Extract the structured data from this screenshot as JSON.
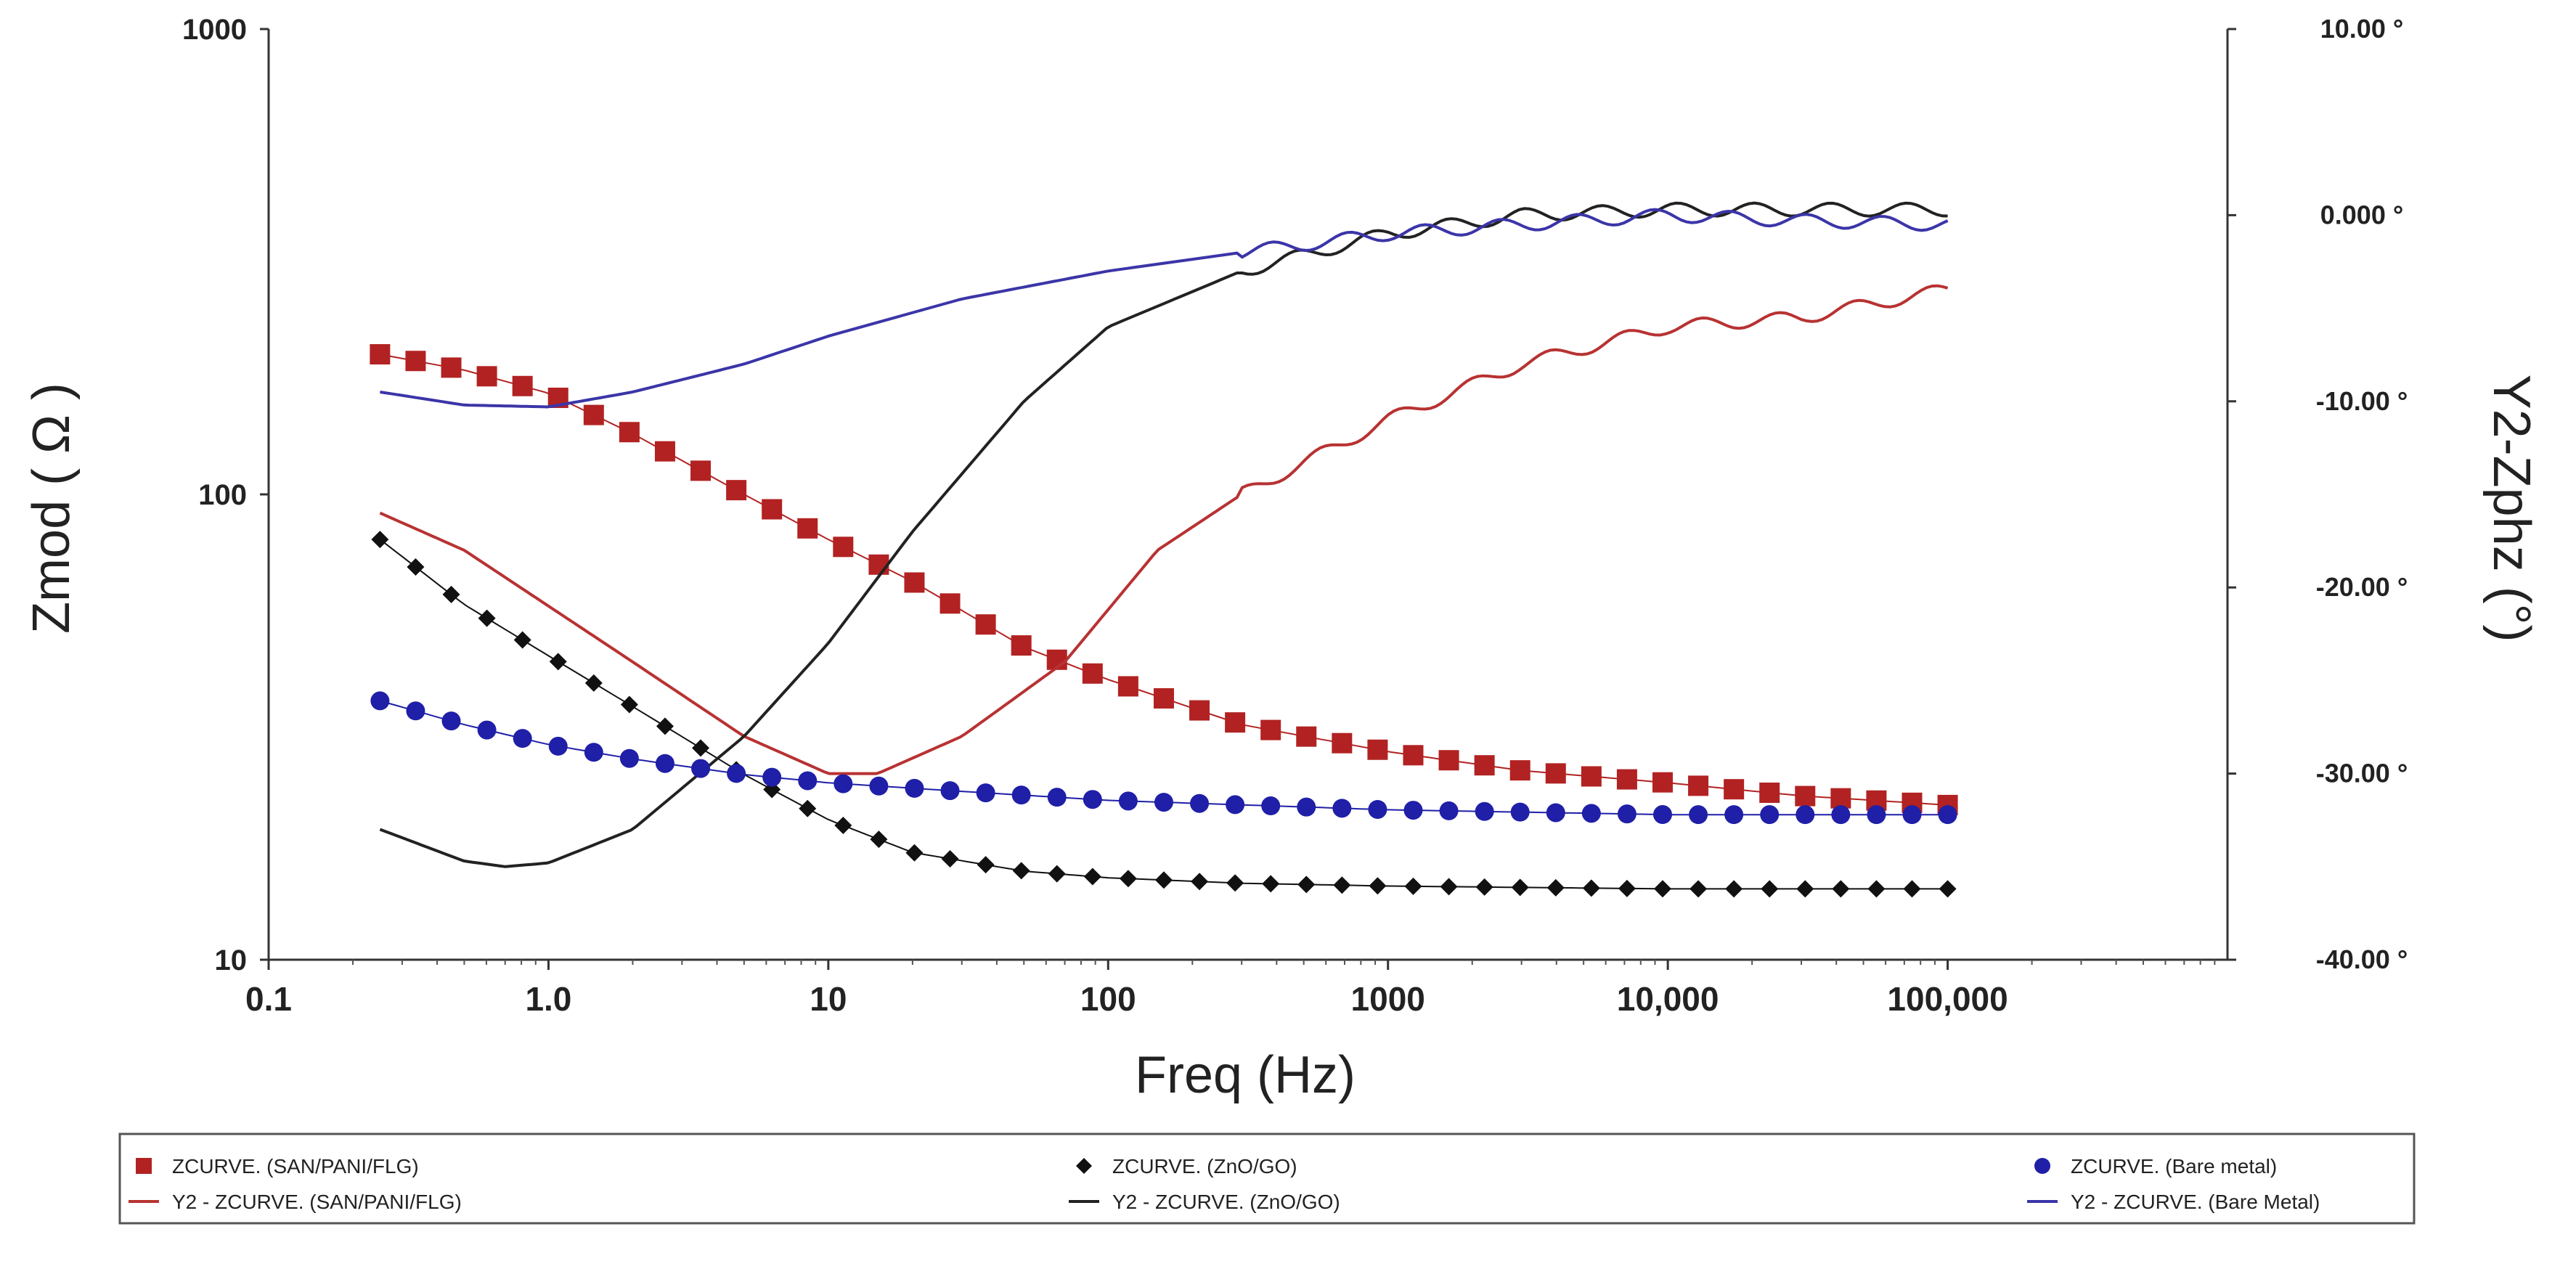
{
  "chart_data": {
    "type": "line",
    "title": "",
    "xlabel": "Freq (Hz)",
    "ylabel": "Zmod ( Ω )",
    "y2label": "Y2-Zphz (°)",
    "xscale": "log",
    "yscale": "log",
    "xlim": [
      0.1,
      1000000
    ],
    "ylim": [
      10,
      1000
    ],
    "y2lim": [
      -40,
      10
    ],
    "xticks": [
      "0.1",
      "1.0",
      "10",
      "100",
      "1000",
      "10,000",
      "100,000"
    ],
    "yticks": [
      "10",
      "100",
      "1000"
    ],
    "y2ticks": [
      "-40.00 °",
      "-30.00 °",
      "-20.00 °",
      "-10.00 °",
      "0.000 °",
      "10.00 °"
    ],
    "grid": false,
    "legend_position": "bottom",
    "series": [
      {
        "name": "ZCURVE. (SAN/PANI/FLG)",
        "axis": "left",
        "kind": "marker",
        "marker": "square",
        "color": "#b22222",
        "points": [
          [
            0.25,
            200
          ],
          [
            0.5,
            185
          ],
          [
            1,
            165
          ],
          [
            2,
            135
          ],
          [
            5,
            100
          ],
          [
            10,
            80
          ],
          [
            20,
            65
          ],
          [
            50,
            47
          ],
          [
            100,
            40
          ],
          [
            300,
            32
          ],
          [
            1000,
            28
          ],
          [
            3000,
            25.5
          ],
          [
            10000,
            24
          ],
          [
            30000,
            22.5
          ],
          [
            100000,
            21.5
          ]
        ]
      },
      {
        "name": "Y2 - ZCURVE. (SAN/PANI/FLG)",
        "axis": "right",
        "kind": "line",
        "color": "#b83232",
        "points": [
          [
            0.25,
            -16
          ],
          [
            0.5,
            -18
          ],
          [
            1,
            -21
          ],
          [
            2,
            -24
          ],
          [
            5,
            -28
          ],
          [
            10,
            -30
          ],
          [
            15,
            -30
          ],
          [
            30,
            -28
          ],
          [
            70,
            -24
          ],
          [
            150,
            -18
          ],
          [
            300,
            -15
          ],
          [
            1000,
            -11
          ],
          [
            3000,
            -8
          ],
          [
            10000,
            -6
          ],
          [
            30000,
            -5.5
          ],
          [
            100000,
            -4
          ]
        ]
      },
      {
        "name": "ZCURVE. (ZnO/GO)",
        "axis": "left",
        "kind": "marker",
        "marker": "diamond",
        "color": "#111111",
        "points": [
          [
            0.25,
            80
          ],
          [
            0.5,
            58
          ],
          [
            1,
            45
          ],
          [
            2,
            35
          ],
          [
            5,
            25
          ],
          [
            10,
            20
          ],
          [
            20,
            17
          ],
          [
            50,
            15.5
          ],
          [
            100,
            15
          ],
          [
            300,
            14.6
          ],
          [
            1000,
            14.4
          ],
          [
            10000,
            14.2
          ],
          [
            100000,
            14.2
          ]
        ]
      },
      {
        "name": "Y2 - ZCURVE. (ZnO/GO)",
        "axis": "right",
        "kind": "line",
        "color": "#222222",
        "points": [
          [
            0.25,
            -33
          ],
          [
            0.5,
            -34.7
          ],
          [
            0.7,
            -35
          ],
          [
            1,
            -34.8
          ],
          [
            2,
            -33
          ],
          [
            5,
            -28
          ],
          [
            10,
            -23
          ],
          [
            20,
            -17
          ],
          [
            50,
            -10
          ],
          [
            100,
            -6
          ],
          [
            300,
            -3
          ],
          [
            1000,
            -1
          ],
          [
            3000,
            0
          ],
          [
            10000,
            0.3
          ],
          [
            100000,
            0.3
          ]
        ]
      },
      {
        "name": "ZCURVE. (Bare metal)",
        "axis": "left",
        "kind": "marker",
        "marker": "circle",
        "color": "#1f1fa8",
        "points": [
          [
            0.25,
            36
          ],
          [
            0.5,
            32
          ],
          [
            1,
            29
          ],
          [
            2,
            27
          ],
          [
            5,
            25
          ],
          [
            10,
            24
          ],
          [
            30,
            23
          ],
          [
            100,
            22
          ],
          [
            1000,
            21
          ],
          [
            10000,
            20.5
          ],
          [
            100000,
            20.5
          ]
        ]
      },
      {
        "name": "Y2 - ZCURVE. (Bare Metal)",
        "axis": "right",
        "kind": "line",
        "color": "#3b35a8",
        "points": [
          [
            0.25,
            -9.5
          ],
          [
            0.5,
            -10.2
          ],
          [
            1,
            -10.3
          ],
          [
            2,
            -9.5
          ],
          [
            5,
            -8
          ],
          [
            10,
            -6.5
          ],
          [
            30,
            -4.5
          ],
          [
            100,
            -3
          ],
          [
            300,
            -2
          ],
          [
            1000,
            -1
          ],
          [
            3000,
            -0.5
          ],
          [
            10000,
            0
          ],
          [
            30000,
            -0.3
          ],
          [
            100000,
            -0.5
          ]
        ]
      }
    ],
    "legend": [
      {
        "label": "ZCURVE. (SAN/PANI/FLG)",
        "marker": "square",
        "color": "#b22222"
      },
      {
        "label": "ZCURVE. (ZnO/GO)",
        "marker": "diamond",
        "color": "#111111"
      },
      {
        "label": "ZCURVE. (Bare metal)",
        "marker": "circle",
        "color": "#1f1fa8"
      },
      {
        "label": "Y2 - ZCURVE. (SAN/PANI/FLG)",
        "marker": "line",
        "color": "#b83232"
      },
      {
        "label": "Y2 - ZCURVE. (ZnO/GO)",
        "marker": "line",
        "color": "#222222"
      },
      {
        "label": "Y2 - ZCURVE. (Bare Metal)",
        "marker": "line",
        "color": "#3b35a8"
      }
    ]
  }
}
